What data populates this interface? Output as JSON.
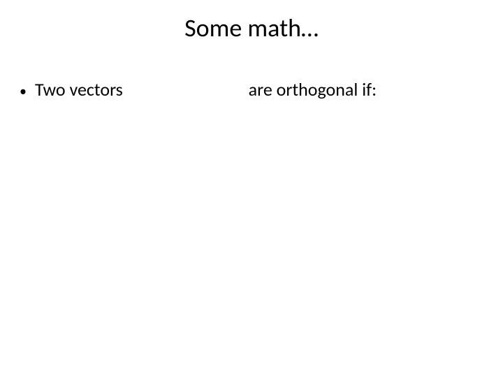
{
  "slide": {
    "title": "Some math…",
    "bullet": {
      "marker": "•",
      "text_left": "Two vectors",
      "text_right": "are orthogonal if:"
    }
  },
  "style": {
    "background_color": "#ffffff",
    "text_color": "#000000",
    "title_fontsize": 36,
    "body_fontsize": 26,
    "font_family": "Calibri"
  }
}
